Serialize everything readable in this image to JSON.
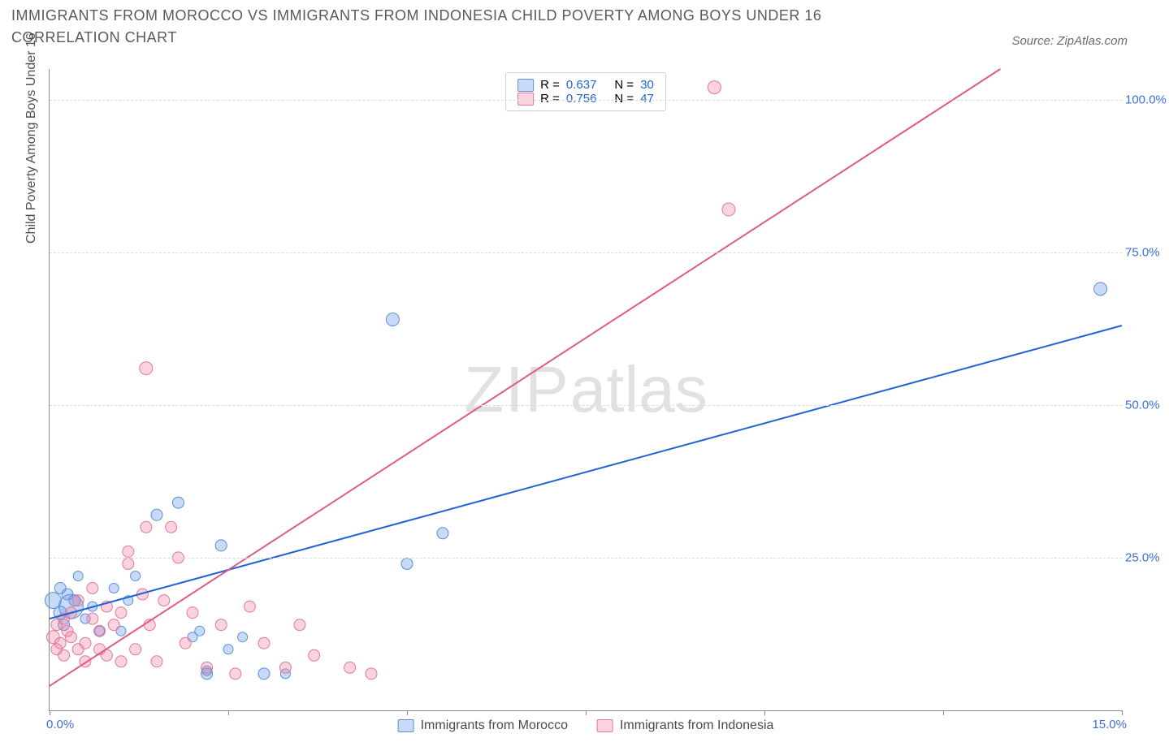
{
  "title": "IMMIGRANTS FROM MOROCCO VS IMMIGRANTS FROM INDONESIA CHILD POVERTY AMONG BOYS UNDER 16 CORRELATION CHART",
  "source_label": "Source: ZipAtlas.com",
  "ylabel": "Child Poverty Among Boys Under 16",
  "watermark_a": "ZIP",
  "watermark_b": "atlas",
  "chart": {
    "type": "scatter+regression",
    "background_color": "#ffffff",
    "grid_color": "#dcdcdc",
    "axis_color": "#888888",
    "label_color_axis_numbers": "#3b6fd6",
    "x": {
      "min": 0,
      "max": 15,
      "tick_step": 2.5,
      "label_min": "0.0%",
      "label_max": "15.0%"
    },
    "y": {
      "min": 0,
      "max": 105,
      "gridlines": [
        25,
        50,
        75,
        100
      ],
      "tick_labels": {
        "25": "25.0%",
        "50": "50.0%",
        "75": "75.0%",
        "100": "100.0%"
      }
    },
    "series": [
      {
        "name": "Immigrants from Morocco",
        "color_fill": "rgba(100,150,235,0.35)",
        "color_stroke": "#5a8fd6",
        "trend_color": "#1f63d6",
        "R": 0.637,
        "N": 30,
        "trendline": {
          "x1": 0,
          "y1": 15,
          "x2": 15,
          "y2": 63
        },
        "points": [
          [
            0.05,
            18,
            10
          ],
          [
            0.15,
            16,
            8
          ],
          [
            0.15,
            20,
            7
          ],
          [
            0.2,
            14,
            7
          ],
          [
            0.25,
            19,
            7
          ],
          [
            0.35,
            18,
            7
          ],
          [
            0.4,
            22,
            6
          ],
          [
            0.5,
            15,
            6
          ],
          [
            0.6,
            17,
            6
          ],
          [
            0.3,
            17,
            15
          ],
          [
            0.7,
            13,
            6
          ],
          [
            0.9,
            20,
            6
          ],
          [
            1.0,
            13,
            6
          ],
          [
            1.1,
            18,
            6
          ],
          [
            1.2,
            22,
            6
          ],
          [
            1.5,
            32,
            7
          ],
          [
            1.8,
            34,
            7
          ],
          [
            2.0,
            12,
            6
          ],
          [
            2.1,
            13,
            6
          ],
          [
            2.2,
            6,
            7
          ],
          [
            2.2,
            6.5,
            6
          ],
          [
            2.4,
            27,
            7
          ],
          [
            2.5,
            10,
            6
          ],
          [
            2.7,
            12,
            6
          ],
          [
            3.0,
            6,
            7
          ],
          [
            3.3,
            6,
            6
          ],
          [
            5.0,
            24,
            7
          ],
          [
            5.5,
            29,
            7
          ],
          [
            4.8,
            64,
            8
          ],
          [
            14.7,
            69,
            8
          ]
        ]
      },
      {
        "name": "Immigrants from Indonesia",
        "color_fill": "rgba(240,130,160,0.35)",
        "color_stroke": "#e07a9a",
        "trend_color": "#e05a86",
        "R": 0.756,
        "N": 47,
        "trendline": {
          "x1": 0,
          "y1": 4,
          "x2": 13.3,
          "y2": 105
        },
        "points": [
          [
            0.05,
            12,
            8
          ],
          [
            0.1,
            10,
            7
          ],
          [
            0.1,
            14,
            7
          ],
          [
            0.15,
            11,
            7
          ],
          [
            0.2,
            9,
            7
          ],
          [
            0.2,
            15,
            7
          ],
          [
            0.25,
            13,
            7
          ],
          [
            0.3,
            12,
            7
          ],
          [
            0.3,
            16,
            7
          ],
          [
            0.4,
            10,
            7
          ],
          [
            0.4,
            18,
            7
          ],
          [
            0.5,
            11,
            7
          ],
          [
            0.5,
            8,
            7
          ],
          [
            0.6,
            15,
            7
          ],
          [
            0.6,
            20,
            7
          ],
          [
            0.7,
            10,
            7
          ],
          [
            0.7,
            13,
            7
          ],
          [
            0.8,
            9,
            7
          ],
          [
            0.8,
            17,
            7
          ],
          [
            0.9,
            14,
            7
          ],
          [
            1.0,
            8,
            7
          ],
          [
            1.0,
            16,
            7
          ],
          [
            1.1,
            24,
            7
          ],
          [
            1.1,
            26,
            7
          ],
          [
            1.2,
            10,
            7
          ],
          [
            1.3,
            19,
            7
          ],
          [
            1.35,
            30,
            7
          ],
          [
            1.4,
            14,
            7
          ],
          [
            1.5,
            8,
            7
          ],
          [
            1.6,
            18,
            7
          ],
          [
            1.7,
            30,
            7
          ],
          [
            1.8,
            25,
            7
          ],
          [
            1.9,
            11,
            7
          ],
          [
            2.0,
            16,
            7
          ],
          [
            2.2,
            7,
            7
          ],
          [
            2.4,
            14,
            7
          ],
          [
            2.6,
            6,
            7
          ],
          [
            2.8,
            17,
            7
          ],
          [
            3.0,
            11,
            7
          ],
          [
            3.3,
            7,
            7
          ],
          [
            3.5,
            14,
            7
          ],
          [
            3.7,
            9,
            7
          ],
          [
            4.2,
            7,
            7
          ],
          [
            4.5,
            6,
            7
          ],
          [
            1.35,
            56,
            8
          ],
          [
            9.5,
            82,
            8
          ],
          [
            9.3,
            102,
            8
          ]
        ]
      }
    ]
  },
  "legend_top": {
    "R_label": "R =",
    "N_label": "N ="
  },
  "legend_bottom": {
    "items": [
      "Immigrants from Morocco",
      "Immigrants from Indonesia"
    ]
  }
}
